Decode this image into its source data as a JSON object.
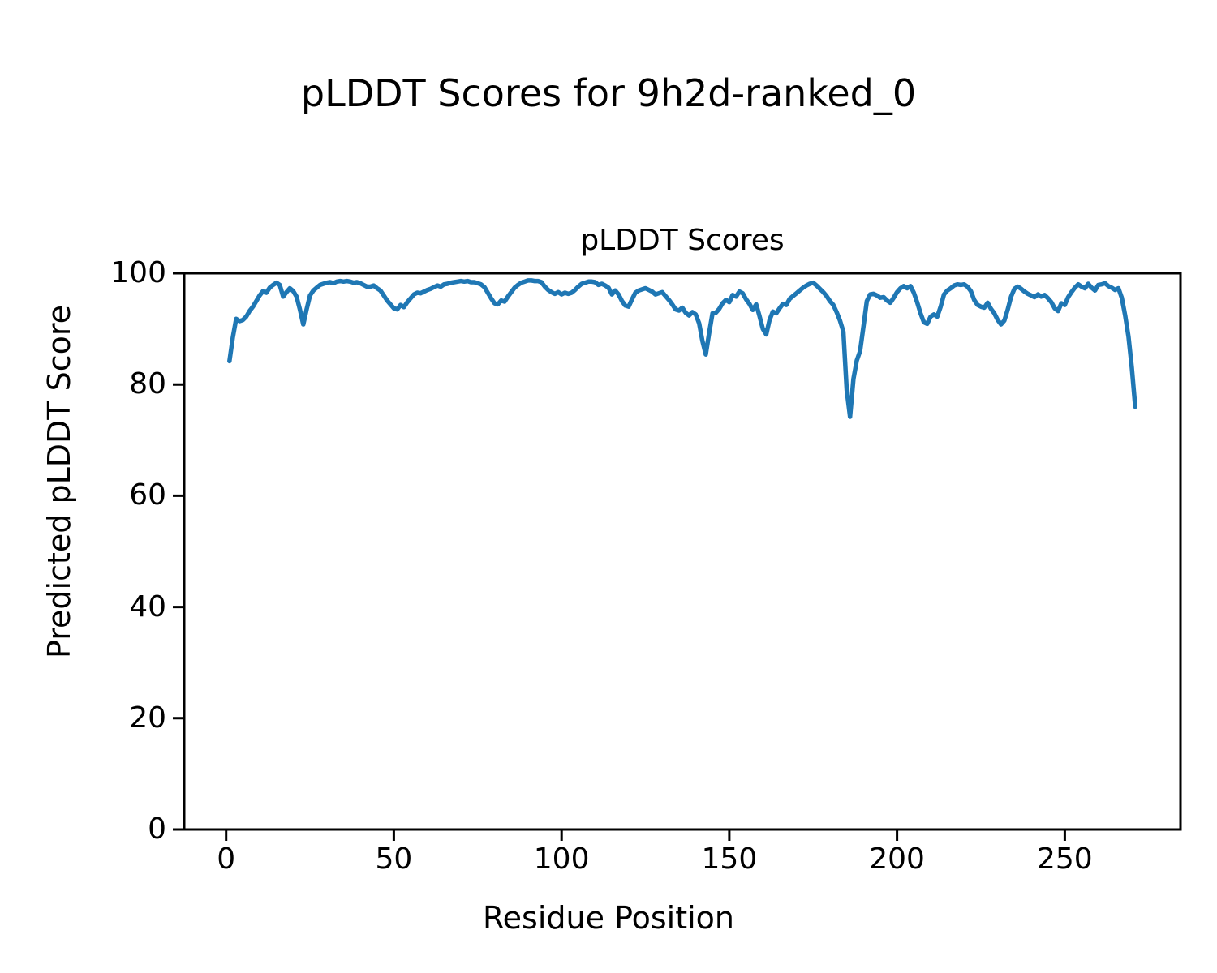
{
  "figure": {
    "title": "pLDDT Scores for 9h2d-ranked_0"
  },
  "chart_data": {
    "type": "line",
    "title": "pLDDT Scores",
    "xlabel": "Residue Position",
    "ylabel": "Predicted pLDDT Score",
    "xlim": [
      -12.5,
      284.5
    ],
    "ylim": [
      0,
      100
    ],
    "x_ticks": [
      0,
      50,
      100,
      150,
      200,
      250
    ],
    "y_ticks": [
      0,
      20,
      40,
      60,
      80,
      100
    ],
    "grid": false,
    "legend": "none",
    "line_color": "#1f77b4",
    "line_width": 5.5,
    "series": [
      {
        "name": "pLDDT",
        "x_start": 1,
        "x_step": 1,
        "n_points": 271,
        "y": [
          84.2,
          88.5,
          91.8,
          91.4,
          91.6,
          92.2,
          93.2,
          94.0,
          95.0,
          96.0,
          96.8,
          96.5,
          97.4,
          97.9,
          98.3,
          97.9,
          95.8,
          96.6,
          97.3,
          96.8,
          95.8,
          93.5,
          90.8,
          93.5,
          96.0,
          96.9,
          97.4,
          97.9,
          98.1,
          98.3,
          98.4,
          98.2,
          98.5,
          98.6,
          98.5,
          98.6,
          98.5,
          98.3,
          98.4,
          98.2,
          97.9,
          97.6,
          97.6,
          97.8,
          97.3,
          96.9,
          96.0,
          95.1,
          94.4,
          93.7,
          93.5,
          94.3,
          93.9,
          94.8,
          95.5,
          96.2,
          96.5,
          96.4,
          96.7,
          97.0,
          97.2,
          97.5,
          97.8,
          97.6,
          98.0,
          98.1,
          98.3,
          98.4,
          98.5,
          98.6,
          98.5,
          98.6,
          98.4,
          98.4,
          98.2,
          98.0,
          97.5,
          96.5,
          95.5,
          94.6,
          94.4,
          95.1,
          94.9,
          95.8,
          96.6,
          97.4,
          97.9,
          98.3,
          98.5,
          98.7,
          98.7,
          98.6,
          98.6,
          98.4,
          97.6,
          97.0,
          96.6,
          96.3,
          96.6,
          96.2,
          96.5,
          96.3,
          96.5,
          97.0,
          97.6,
          98.1,
          98.3,
          98.5,
          98.5,
          98.4,
          97.9,
          98.1,
          97.8,
          97.4,
          96.2,
          96.9,
          96.2,
          95.0,
          94.2,
          94.0,
          95.3,
          96.5,
          96.9,
          97.1,
          97.3,
          97.0,
          96.7,
          96.2,
          96.4,
          96.6,
          95.9,
          95.2,
          94.4,
          93.5,
          93.3,
          93.8,
          92.9,
          92.4,
          93.0,
          92.6,
          91.0,
          87.8,
          85.4,
          89.3,
          92.8,
          92.9,
          93.6,
          94.6,
          95.2,
          94.8,
          96.1,
          95.8,
          96.7,
          96.4,
          95.3,
          94.5,
          93.4,
          94.4,
          92.3,
          90.0,
          89.0,
          91.6,
          93.1,
          92.8,
          93.7,
          94.5,
          94.3,
          95.4,
          95.9,
          96.4,
          96.9,
          97.4,
          97.8,
          98.1,
          98.3,
          97.8,
          97.2,
          96.6,
          95.9,
          95.0,
          94.3,
          93.0,
          91.5,
          89.5,
          79.0,
          74.2,
          81.0,
          84.3,
          86.0,
          90.5,
          95.0,
          96.2,
          96.3,
          96.0,
          95.6,
          95.7,
          95.1,
          94.7,
          95.6,
          96.6,
          97.3,
          97.7,
          97.3,
          97.7,
          96.5,
          94.8,
          92.8,
          91.2,
          90.9,
          92.2,
          92.6,
          92.2,
          94.0,
          96.2,
          96.9,
          97.3,
          97.8,
          98.0,
          97.9,
          98.0,
          97.6,
          96.8,
          95.2,
          94.3,
          94.0,
          93.8,
          94.7,
          93.6,
          92.8,
          91.6,
          90.8,
          91.5,
          93.5,
          95.8,
          97.2,
          97.6,
          97.2,
          96.7,
          96.3,
          96.0,
          95.7,
          96.2,
          95.8,
          96.1,
          95.5,
          94.8,
          93.7,
          93.2,
          94.6,
          94.3,
          95.7,
          96.6,
          97.4,
          98.0,
          97.6,
          97.3,
          98.1,
          97.4,
          96.9,
          97.9,
          98.0,
          98.2,
          97.7,
          97.4,
          97.0,
          97.3,
          95.6,
          92.4,
          88.6,
          83.0,
          76.0
        ]
      }
    ]
  }
}
